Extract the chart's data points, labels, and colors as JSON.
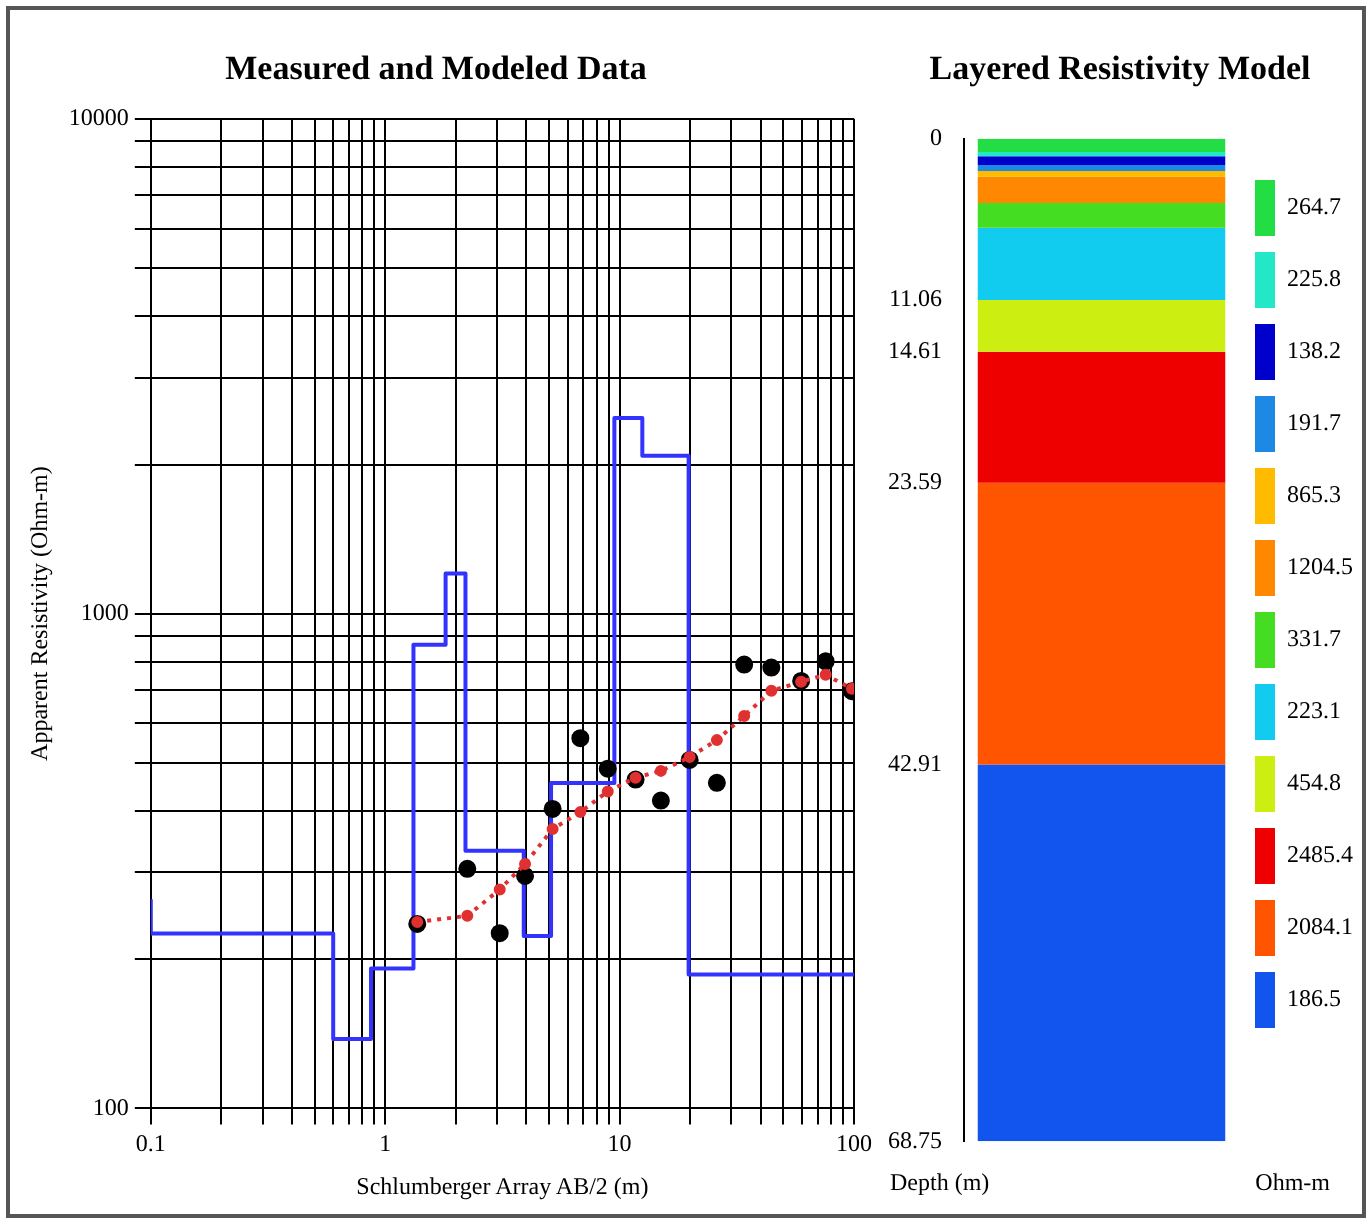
{
  "chart_data": [
    {
      "type": "line",
      "title": "Measured and Modeled Data",
      "xlabel": "Schlumberger Array AB/2 (m)",
      "ylabel": "Apparent Resistivity (Ohm-m)",
      "log": "xy",
      "grid": true,
      "legend": false,
      "xlim": [
        0.1,
        100
      ],
      "ylim": [
        100,
        10000
      ],
      "xticks": [
        0.1,
        {
          "value": 0.2,
          "label": null
        },
        {
          "value": 0.3,
          "label": null
        },
        {
          "value": 0.4,
          "label": null
        },
        {
          "value": 0.5,
          "label": null
        },
        {
          "value": 0.6,
          "label": null
        },
        {
          "value": 0.7,
          "label": null
        },
        {
          "value": 0.8,
          "label": null
        },
        {
          "value": 0.9,
          "label": null
        },
        1,
        {
          "value": 2,
          "label": null
        },
        {
          "value": 3,
          "label": null
        },
        {
          "value": 4,
          "label": null
        },
        {
          "value": 5,
          "label": null
        },
        {
          "value": 6,
          "label": null
        },
        {
          "value": 7,
          "label": null
        },
        {
          "value": 8,
          "label": null
        },
        {
          "value": 9,
          "label": null
        },
        10,
        {
          "value": 20,
          "label": null
        },
        {
          "value": 30,
          "label": null
        },
        {
          "value": 40,
          "label": null
        },
        {
          "value": 50,
          "label": null
        },
        {
          "value": 60,
          "label": null
        },
        {
          "value": 70,
          "label": null
        },
        {
          "value": 80,
          "label": null
        },
        {
          "value": 90,
          "label": null
        },
        100
      ],
      "yticks": [
        100,
        {
          "value": 200,
          "label": null
        },
        {
          "value": 300,
          "label": null
        },
        {
          "value": 400,
          "label": null
        },
        {
          "value": 500,
          "label": null
        },
        {
          "value": 600,
          "label": null
        },
        {
          "value": 700,
          "label": null
        },
        {
          "value": 800,
          "label": null
        },
        {
          "value": 900,
          "label": null
        },
        1000,
        {
          "value": 2000,
          "label": null
        },
        {
          "value": 3000,
          "label": null
        },
        {
          "value": 4000,
          "label": null
        },
        {
          "value": 5000,
          "label": null
        },
        {
          "value": 6000,
          "label": null
        },
        {
          "value": 7000,
          "label": null
        },
        {
          "value": 8000,
          "label": null
        },
        {
          "value": 9000,
          "label": null
        },
        10000
      ],
      "series": [
        {
          "type": "step",
          "color": "#3333ff",
          "marker": "none",
          "line_style": "solid",
          "x": [
            0.1,
            0.6,
            0.87,
            1.32,
            1.81,
            2.2,
            3.9,
            5.1,
            9.5,
            12.5,
            19.7,
            34.8,
            100
          ],
          "values": [
            264.7,
            225.8,
            138.2,
            191.7,
            865.3,
            1204.5,
            331.7,
            223.1,
            454.8,
            2485.4,
            2084.1,
            186.5,
            186.5
          ]
        },
        {
          "type": "scatter",
          "color": "#000000",
          "marker": "circle",
          "x": [
            1.37,
            2.24,
            3.08,
            3.95,
            5.18,
            6.8,
            8.9,
            11.7,
            15.0,
            19.9,
            26.0,
            34.0,
            44.4,
            59.5,
            75.7,
            98
          ],
          "values": [
            236,
            305,
            226,
            295,
            403,
            560,
            486,
            462,
            419,
            506,
            455,
            789,
            778,
            731,
            801,
            697
          ]
        },
        {
          "type": "line",
          "color": "#e03030",
          "marker": "circle",
          "line_style": "dotted",
          "x": [
            1.37,
            2.24,
            3.08,
            3.95,
            5.18,
            6.8,
            8.9,
            11.7,
            15.0,
            19.9,
            26.0,
            34.0,
            44.4,
            59.5,
            75.7,
            98
          ],
          "values": [
            238,
            245,
            277,
            312,
            367,
            397,
            437,
            466,
            481,
            513,
            555,
            621,
            698,
            728,
            752,
            705
          ]
        }
      ]
    },
    {
      "type": "bar",
      "title": "Layered Resistivity Model",
      "ylabel": "Depth (m)",
      "legend_title": "Ohm-m",
      "stacked": true,
      "grid": false,
      "legend": "right",
      "categories": [
        null
      ],
      "ylim": [
        68.75,
        0
      ],
      "yticks": [
        0,
        11.06,
        14.61,
        23.59,
        42.91,
        68.75
      ],
      "series": [
        {
          "name": "264.7",
          "color": "#22dd44",
          "values": [
            0.9
          ]
        },
        {
          "name": "225.8",
          "color": "#22e8c8",
          "values": [
            0.3
          ]
        },
        {
          "name": "138.2",
          "color": "#0000cc",
          "values": [
            0.6
          ]
        },
        {
          "name": "191.7",
          "color": "#1e88e5",
          "values": [
            0.4
          ]
        },
        {
          "name": "865.3",
          "color": "#ffbb00",
          "values": [
            0.4
          ]
        },
        {
          "name": "1204.5",
          "color": "#ff8800",
          "values": [
            1.8
          ]
        },
        {
          "name": "331.7",
          "color": "#44dd22",
          "values": [
            1.7
          ]
        },
        {
          "name": "223.1",
          "color": "#11ccee",
          "values": [
            4.96
          ]
        },
        {
          "name": "454.8",
          "color": "#ccee11",
          "values": [
            3.55
          ]
        },
        {
          "name": "2485.4",
          "color": "#ee0000",
          "values": [
            8.98
          ]
        },
        {
          "name": "2084.1",
          "color": "#ff5500",
          "values": [
            19.32
          ]
        },
        {
          "name": "186.5",
          "color": "#1155ee",
          "values": [
            25.84
          ]
        }
      ]
    }
  ]
}
